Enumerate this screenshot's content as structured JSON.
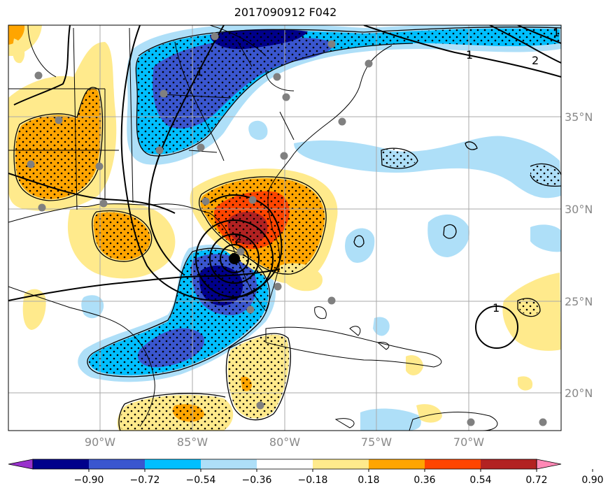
{
  "title": "2017090912 F042",
  "map": {
    "lon_range": [
      -95.0,
      -65.0
    ],
    "lat_range": [
      18.0,
      40.0
    ],
    "lon_ticks": [
      {
        "lon": -90,
        "label": "90°W"
      },
      {
        "lon": -85,
        "label": "85°W"
      },
      {
        "lon": -80,
        "label": "80°W"
      },
      {
        "lon": -75,
        "label": "75°W"
      },
      {
        "lon": -70,
        "label": "70°W"
      }
    ],
    "lat_ticks": [
      {
        "lat": 35,
        "label": "35°N"
      },
      {
        "lat": 30,
        "label": "30°N"
      },
      {
        "lat": 25,
        "label": "25°N"
      },
      {
        "lat": 20,
        "label": "20°N"
      }
    ],
    "grid": true,
    "contour_labels": [
      "1",
      "2",
      "1",
      "2",
      "1",
      "1"
    ],
    "station_marker_color": "#808080",
    "storm_center_color": "#000000"
  },
  "colorbar": {
    "colors": [
      "#9932cc",
      "#00008b",
      "#3a56cf",
      "#00bfff",
      "#aedff8",
      "#ffffff",
      "#ffea8c",
      "#ffa500",
      "#ff4500",
      "#b22222",
      "#ff88b5"
    ],
    "tick_labels": [
      "−0.90",
      "−0.72",
      "−0.54",
      "−0.36",
      "−0.18",
      "0.18",
      "0.36",
      "0.54",
      "0.72",
      "0.90"
    ],
    "extend": "both"
  }
}
